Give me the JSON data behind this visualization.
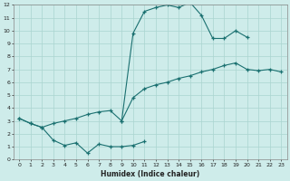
{
  "xlabel": "Humidex (Indice chaleur)",
  "bg_color": "#ceecea",
  "grid_color": "#aad4d0",
  "line_color": "#1a7070",
  "xlim": [
    -0.5,
    23.5
  ],
  "ylim": [
    0,
    12
  ],
  "xticks": [
    0,
    1,
    2,
    3,
    4,
    5,
    6,
    7,
    8,
    9,
    10,
    11,
    12,
    13,
    14,
    15,
    16,
    17,
    18,
    19,
    20,
    21,
    22,
    23
  ],
  "yticks": [
    0,
    1,
    2,
    3,
    4,
    5,
    6,
    7,
    8,
    9,
    10,
    11,
    12
  ],
  "line1_x": [
    0,
    1,
    2,
    3,
    4,
    5,
    6,
    7,
    8,
    9,
    10,
    11
  ],
  "line1_y": [
    3.2,
    2.8,
    2.5,
    1.5,
    1.1,
    1.3,
    0.5,
    1.2,
    1.0,
    1.0,
    1.1,
    1.4
  ],
  "line2_x": [
    0,
    1,
    2,
    3,
    4,
    5,
    6,
    7,
    8,
    9,
    10,
    11,
    12,
    13,
    14,
    15,
    16,
    17,
    18,
    19,
    20,
    21,
    22,
    23
  ],
  "line2_y": [
    3.2,
    2.8,
    2.5,
    2.8,
    3.0,
    3.2,
    3.5,
    3.7,
    3.8,
    3.0,
    4.8,
    5.5,
    5.8,
    6.0,
    6.3,
    6.5,
    6.8,
    7.0,
    7.3,
    7.5,
    7.0,
    6.9,
    7.0,
    6.8
  ],
  "line3_x": [
    9,
    10,
    11,
    12,
    13,
    14,
    15,
    16,
    17,
    18,
    19,
    20
  ],
  "line3_y": [
    3.0,
    9.8,
    11.5,
    11.8,
    12.0,
    11.8,
    12.2,
    11.2,
    9.4,
    9.4,
    10.0,
    9.5
  ]
}
